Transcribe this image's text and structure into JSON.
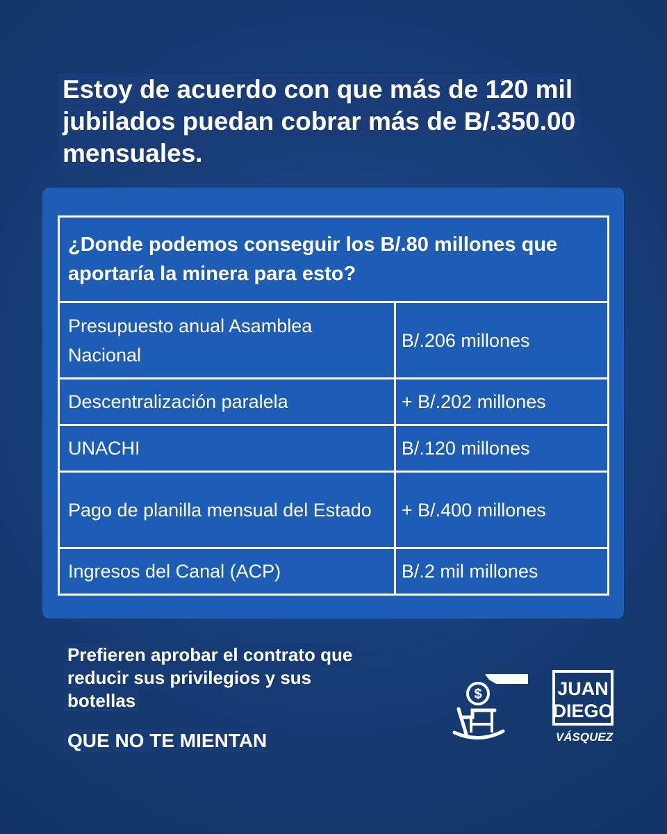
{
  "headline": "Estoy de acuerdo con que más de 120 mil jubilados puedan cobrar más de B/.350.00 mensuales.",
  "table": {
    "header": "¿Donde podemos conseguir los B/.80 millones que aportaría la minera para esto?",
    "rows": [
      {
        "label": "Presupuesto anual Asamblea Nacional",
        "value": "B/.206 millones"
      },
      {
        "label": "Descentralización paralela",
        "value": "+ B/.202 millones"
      },
      {
        "label": "UNACHI",
        "value": "B/.120 millones"
      },
      {
        "label": "Pago de planilla mensual del Estado",
        "value": "+ B/.400 millones"
      },
      {
        "label": "Ingresos del Canal (ACP)",
        "value": "B/.2 mil millones"
      }
    ]
  },
  "tagline": "Prefieren aprobar el contrato que reducir sus privilegios y sus botellas",
  "slogan": "QUE NO TE MIENTAN",
  "icons": {
    "pension": "rocking-chair-coin-icon",
    "logo": "juan-diego-vasquez-logo"
  },
  "logo_text": {
    "line1": "JUAN",
    "line2": "DIEGO",
    "line3": "VÁSQUEZ"
  },
  "colors": {
    "background": "#173f7a",
    "panel": "#1e5db5",
    "text": "#ffffff"
  }
}
